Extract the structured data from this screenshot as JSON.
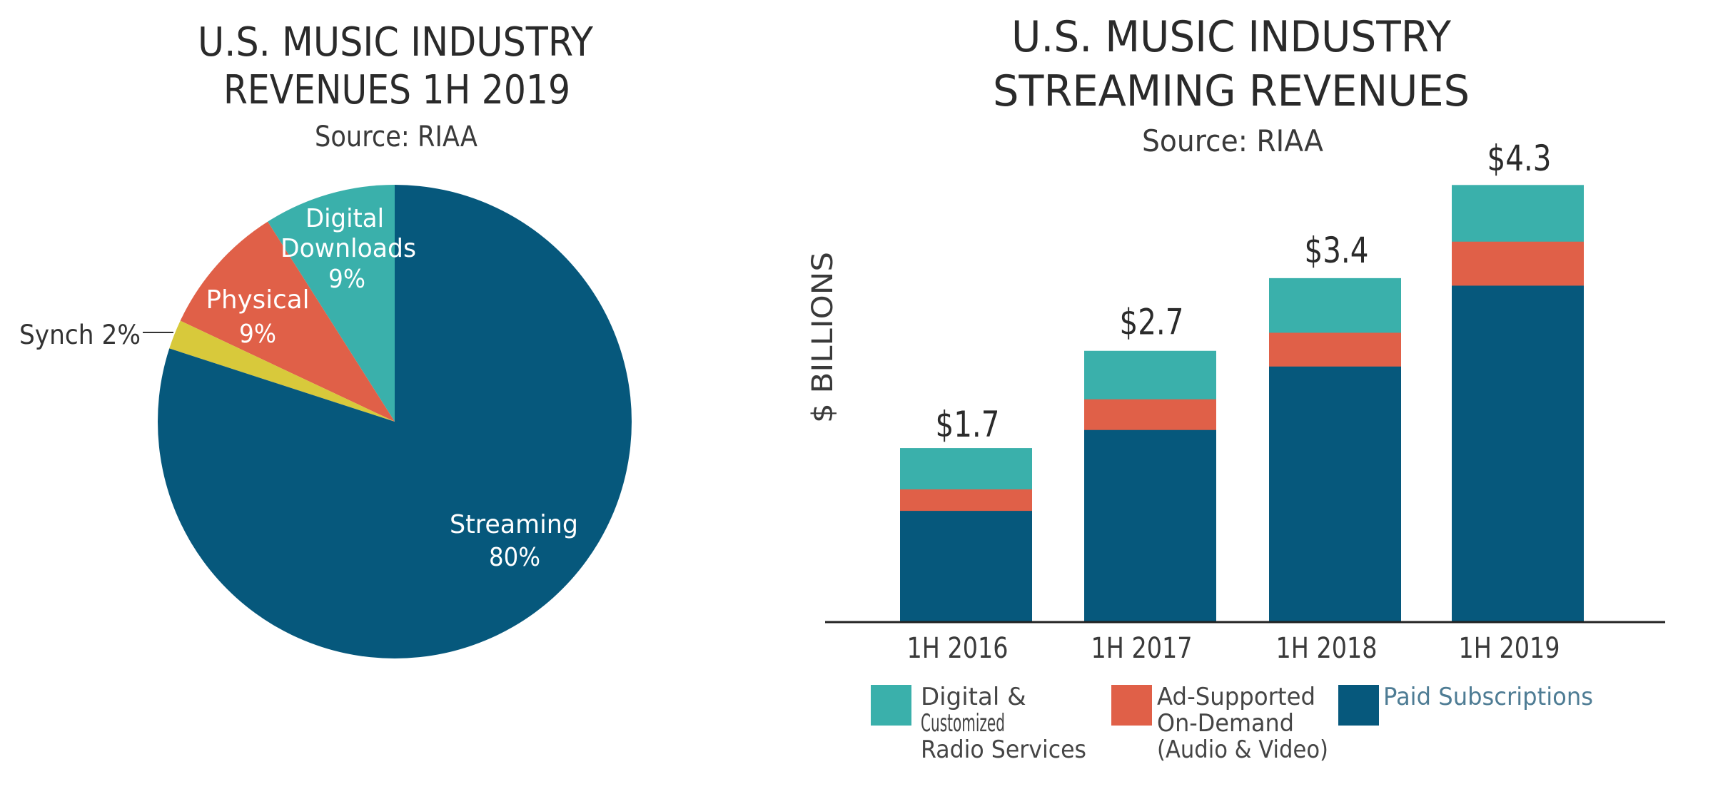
{
  "colors": {
    "streaming": "#06587c",
    "digital_downloads": "#3ab0ab",
    "physical": "#e06048",
    "synch": "#d8c93b",
    "radio": "#3ab0ab",
    "ad_supported": "#e06048",
    "paid": "#06587c",
    "paid_legend_text": "#4e7c94"
  },
  "chart_data": [
    {
      "type": "pie",
      "title": "U.S. MUSIC INDUSTRY REVENUES 1H 2019",
      "title_lines": [
        "U.S. MUSIC INDUSTRY",
        "REVENUES 1H 2019"
      ],
      "subtitle": "Source: RIAA",
      "start": "top",
      "direction": "counterclockwise",
      "slices": [
        {
          "key": "digital_downloads",
          "label_lines": [
            "Digital",
            "Downloads",
            "9%"
          ],
          "value": 9
        },
        {
          "key": "physical",
          "label_lines": [
            "Physical",
            "9%"
          ],
          "value": 9
        },
        {
          "key": "synch",
          "label_lines": [
            "Synch 2%"
          ],
          "value": 2,
          "label_position": "outside-left"
        },
        {
          "key": "streaming",
          "label_lines": [
            "Streaming",
            "80%"
          ],
          "value": 80
        }
      ]
    },
    {
      "type": "bar",
      "stacked": true,
      "title": "U.S. MUSIC INDUSTRY STREAMING REVENUES",
      "title_lines": [
        "U.S. MUSIC INDUSTRY",
        "STREAMING REVENUES"
      ],
      "subtitle": "Source: RIAA",
      "xlabel": "",
      "ylabel": "$ BILLIONS",
      "ylim": [
        0,
        4.3
      ],
      "grid": false,
      "categories": [
        "1H 2016",
        "1H 2017",
        "1H 2018",
        "1H 2019"
      ],
      "totals": [
        1.7,
        2.7,
        3.4,
        4.3
      ],
      "total_labels": [
        "$1.7",
        "$2.7",
        "$3.4",
        "$4.3"
      ],
      "series": [
        {
          "key": "paid",
          "name": "Paid Subscriptions",
          "values": [
            1.09,
            1.88,
            2.5,
            3.29
          ]
        },
        {
          "key": "ad_supported",
          "name": "Ad-Supported On-Demand (Audio & Video)",
          "values": [
            0.21,
            0.3,
            0.33,
            0.43
          ]
        },
        {
          "key": "radio",
          "name": "Digital & Customized Radio Services",
          "values": [
            0.4,
            0.47,
            0.53,
            0.55
          ]
        }
      ],
      "legend_position": "bottom",
      "legend": [
        {
          "key": "radio",
          "lines": [
            "Digital &",
            "Customized",
            "Radio Services"
          ]
        },
        {
          "key": "ad_supported",
          "lines": [
            "Ad-Supported",
            "On-Demand",
            "(Audio & Video)"
          ]
        },
        {
          "key": "paid",
          "lines": [
            "Paid Subscriptions"
          ]
        }
      ]
    }
  ]
}
